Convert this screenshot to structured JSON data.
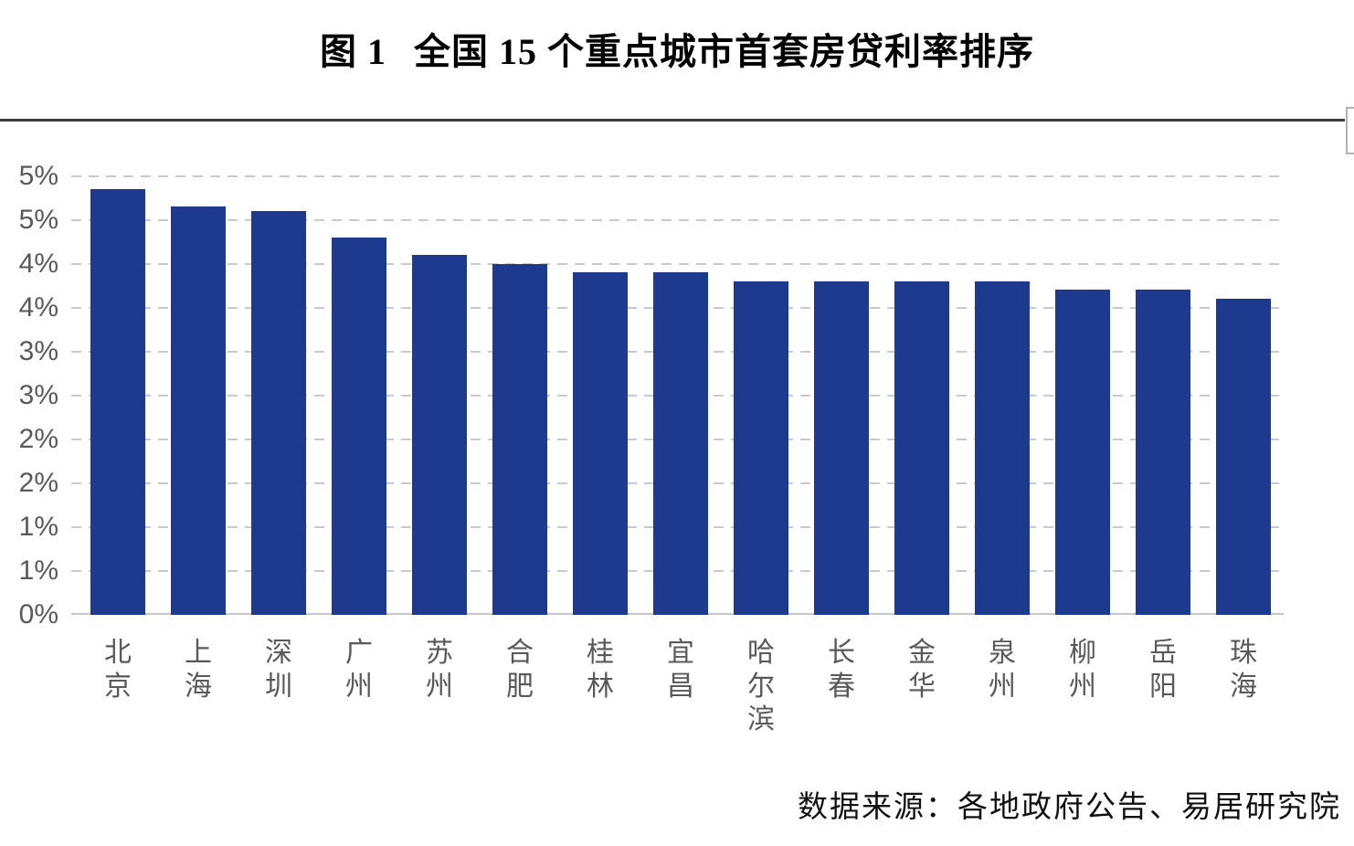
{
  "title": {
    "figure_label": "图 1",
    "text": "全国 15 个重点城市首套房贷利率排序"
  },
  "source_note": "数据来源：各地政府公告、易居研究院",
  "colors": {
    "bar": "#1d3a8e",
    "gridline": "#c9c9c9",
    "baseline": "#c6c6c6",
    "axis_text": "#595959",
    "title_text": "#000000",
    "rule": "#3a3a3a",
    "bracket": "#b3b3b3"
  },
  "chart_data": {
    "type": "bar",
    "title": "图 1　全国 15 个重点城市首套房贷利率排序",
    "xlabel": "",
    "ylabel": "",
    "categories": [
      "北京",
      "上海",
      "深圳",
      "广州",
      "苏州",
      "合肥",
      "桂林",
      "宜昌",
      "哈尔滨",
      "长春",
      "金华",
      "泉州",
      "柳州",
      "岳阳",
      "珠海"
    ],
    "values": [
      4.85,
      4.65,
      4.6,
      4.3,
      4.1,
      4.0,
      3.9,
      3.9,
      3.8,
      3.8,
      3.8,
      3.8,
      3.7,
      3.7,
      3.6
    ],
    "unit": "%",
    "ylim": [
      0,
      5
    ],
    "ytick_step": 0.5,
    "yticks": [
      {
        "value": 5.0,
        "label": "5%"
      },
      {
        "value": 4.5,
        "label": "5%"
      },
      {
        "value": 4.0,
        "label": "4%"
      },
      {
        "value": 3.5,
        "label": "4%"
      },
      {
        "value": 3.0,
        "label": "3%"
      },
      {
        "value": 2.5,
        "label": "3%"
      },
      {
        "value": 2.0,
        "label": "2%"
      },
      {
        "value": 1.5,
        "label": "2%"
      },
      {
        "value": 1.0,
        "label": "1%"
      },
      {
        "value": 0.5,
        "label": "1%"
      },
      {
        "value": 0.0,
        "label": "0%"
      }
    ],
    "grid": true,
    "grid_style": "dashed",
    "legend": false,
    "bar_orientation": "vertical",
    "x_label_orientation": "vertical-stacked"
  }
}
